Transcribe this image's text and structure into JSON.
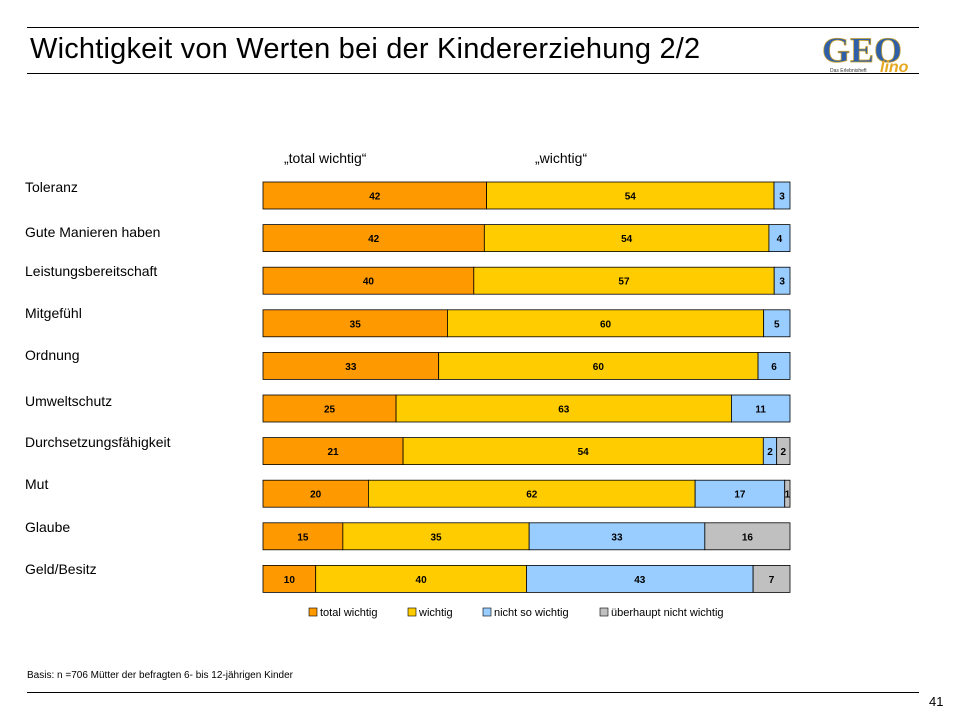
{
  "title": "Wichtigkeit von Werten bei der Kindererziehung 2/2",
  "logo": {
    "main": "GEO",
    "sub": "lino",
    "tagline": "Das Erlebnisheft"
  },
  "column_heads": [
    "„total wichtig“",
    "„wichtig“"
  ],
  "footnote": "Basis: n =706 Mütter der befragten 6- bis 12-jährigen Kinder",
  "page_number": "41",
  "colors": {
    "total wichtig": "#FF9900",
    "wichtig": "#FFCC00",
    "nicht so wichtig": "#99CCFF",
    "überhaupt nicht wichtig": "#C0C0C0"
  },
  "chart_data": {
    "type": "bar",
    "orientation": "horizontal",
    "stacked": true,
    "categories": [
      "Toleranz",
      "Gute Manieren haben",
      "Leistungsbereitschaft",
      "Mitgefühl",
      "Ordnung",
      "Umweltschutz",
      "Durchsetzungsfähigkeit",
      "Mut",
      "Glaube",
      "Geld/Besitz"
    ],
    "series": [
      {
        "name": "total wichtig",
        "values": [
          42,
          42,
          40,
          35,
          33,
          25,
          21,
          20,
          15,
          10
        ]
      },
      {
        "name": "wichtig",
        "values": [
          54,
          54,
          57,
          60,
          60,
          63,
          54,
          62,
          35,
          40
        ]
      },
      {
        "name": "nicht so wichtig",
        "values": [
          3,
          4,
          3,
          5,
          6,
          11,
          2,
          17,
          33,
          43
        ]
      },
      {
        "name": "überhaupt nicht wichtig",
        "values": [
          null,
          null,
          null,
          null,
          null,
          null,
          2,
          1,
          16,
          7
        ]
      }
    ],
    "legend_position": "bottom",
    "grid": false
  }
}
